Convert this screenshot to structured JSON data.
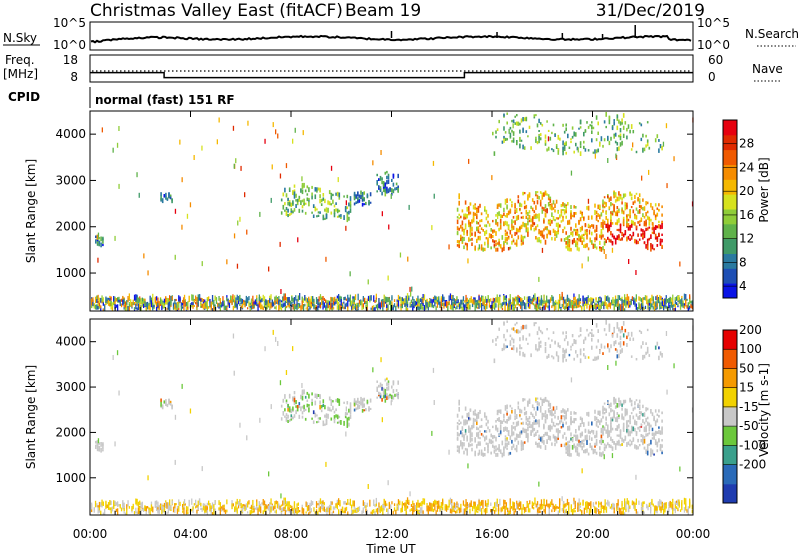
{
  "header": {
    "title": "Christmas Valley East (fitACF)",
    "beam": "Beam 19",
    "date": "31/Dec/2019"
  },
  "top_panels": {
    "nsky_label": "N.Sky",
    "nsky_ticks": [
      "10^5",
      "10^0"
    ],
    "nsearch_label": "N.Search",
    "nsearch_ticks": [
      "10^5",
      "10^0"
    ],
    "freq_label": "Freq.",
    "freq_unit": "[MHz]",
    "freq_ticks": [
      "18",
      "8"
    ],
    "nave_label": "Nave",
    "nave_ticks": [
      "60",
      "0"
    ],
    "cpid_label": "CPID",
    "cpid_value": "normal (fast) 151 RF"
  },
  "chart_data": {
    "type": "heatmap",
    "x_ticks": [
      "00:00",
      "04:00",
      "08:00",
      "12:00",
      "16:00",
      "20:00",
      "00:00"
    ],
    "x_range_hours": [
      0,
      24
    ],
    "xlabel": "Time UT",
    "y_range_km": [
      180,
      4500
    ],
    "y_ticks": [
      1000,
      2000,
      3000,
      4000
    ],
    "freq_segments": [
      {
        "start": 0,
        "end": 2.95,
        "mhz": 11.5
      },
      {
        "start": 2.95,
        "end": 14.9,
        "mhz": 9.4
      },
      {
        "start": 14.9,
        "end": 24,
        "mhz": 11.5
      }
    ],
    "scatter_regions": [
      {
        "t0": 7.6,
        "t1": 10.4,
        "r0": 2150,
        "r1": 2900,
        "density": 0.3,
        "power": 12,
        "velocity": 10
      },
      {
        "t0": 10.5,
        "t1": 11.2,
        "r0": 2450,
        "r1": 2750,
        "density": 0.25,
        "power": 8,
        "velocity": 5
      },
      {
        "t0": 11.4,
        "t1": 12.3,
        "r0": 2650,
        "r1": 3250,
        "density": 0.25,
        "power": 8,
        "velocity": 5
      },
      {
        "t0": 14.6,
        "t1": 22.8,
        "r0": 1500,
        "r1": 2750,
        "density": 0.6,
        "power": 20,
        "velocity": 0
      },
      {
        "t0": 16.0,
        "t1": 22.8,
        "r0": 3550,
        "r1": 4450,
        "density": 0.18,
        "power": 12,
        "velocity": 0
      },
      {
        "t0": 0.2,
        "t1": 0.55,
        "r0": 1600,
        "r1": 1850,
        "density": 0.3,
        "power": 8,
        "velocity": 5
      },
      {
        "t0": 2.8,
        "t1": 3.3,
        "r0": 2550,
        "r1": 2800,
        "density": 0.3,
        "power": 8,
        "velocity": 5
      }
    ],
    "ground_scatter_band": {
      "r0": 180,
      "r1": 420
    },
    "power_panel": {
      "ylabel": "Slant Range [km]",
      "colorbar_label": "Power [dB]",
      "colorbar_ticks": [
        4,
        8,
        12,
        16,
        20,
        24,
        28
      ],
      "colorbar_colors": [
        "#0a14e6",
        "#1e4fb4",
        "#2a7aa0",
        "#3f9a68",
        "#5fb24a",
        "#8fcd38",
        "#d6e21e",
        "#f5b800",
        "#f58c00",
        "#f05a00",
        "#e02a00",
        "#e6000f"
      ]
    },
    "velocity_panel": {
      "ylabel": "Slant Range [km]",
      "colorbar_label": "Velocity [m s-1]",
      "colorbar_ticks": [
        200,
        100,
        50,
        15,
        -15,
        -50,
        -100,
        -200
      ],
      "colorbar_colors": [
        "#1f3cb0",
        "#2a6ab8",
        "#3aa08c",
        "#6cc83c",
        "#c8c8c8",
        "#f2d200",
        "#f59a00",
        "#f05a00",
        "#e60000"
      ]
    }
  }
}
